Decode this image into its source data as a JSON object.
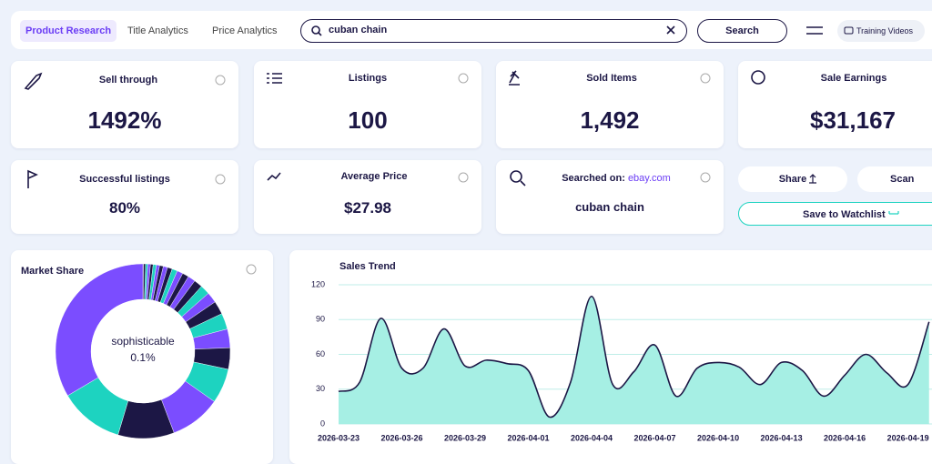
{
  "nav": {
    "tabs": [
      "Product Research",
      "Title Analytics",
      "Price Analytics"
    ],
    "search_query": "cuban chain",
    "search_button": "Search",
    "training_videos": "Training Videos"
  },
  "stats": [
    {
      "label": "Sell through",
      "value": "1492%"
    },
    {
      "label": "Listings",
      "value": "100"
    },
    {
      "label": "Sold Items",
      "value": "1,492"
    },
    {
      "label": "Sale Earnings",
      "value": "$31,167"
    },
    {
      "label": "Successful listings",
      "value": "80%"
    },
    {
      "label": "Average Price",
      "value": "$27.98"
    }
  ],
  "search_info": {
    "label": "Searched on:",
    "site": "ebay.com",
    "query": "cuban chain"
  },
  "actions": {
    "share": "Share",
    "scan": "Scan",
    "watchlist": "Save to Watchlist"
  },
  "chart_data": [
    {
      "type": "pie",
      "title": "Market Share",
      "categories": [
        "sophisticable",
        null,
        null,
        null,
        null,
        null,
        null,
        null,
        null,
        null,
        null,
        null,
        null,
        null,
        null,
        null,
        null,
        null,
        null,
        null,
        null,
        null,
        null,
        null,
        null,
        null
      ],
      "values": [
        0.1,
        0.4,
        0.4,
        0.5,
        0.5,
        0.6,
        0.6,
        0.7,
        0.8,
        0.9,
        1.0,
        1.1,
        1.2,
        1.4,
        1.6,
        1.8,
        2.0,
        2.5,
        3.0,
        3.5,
        4.0,
        6.5,
        9.5,
        10.5,
        12.0,
        33.8
      ],
      "value_labels": [
        "0.1%",
        null,
        null,
        null,
        null,
        null,
        null,
        null,
        null,
        null,
        null,
        null,
        null,
        null,
        null,
        null,
        null,
        null,
        null,
        null,
        null,
        null,
        null,
        null,
        null,
        null
      ],
      "colors": [
        "#7b4dff",
        "#1c1745",
        "#1dd3c0",
        "#7b4dff",
        "#1c1745",
        "#1dd3c0",
        "#7b4dff",
        "#1c1745",
        "#7b4dff",
        "#1c1745",
        "#1dd3c0",
        "#7b4dff",
        "#1c1745",
        "#7b4dff",
        "#1c1745",
        "#1dd3c0",
        "#7b4dff",
        "#1c1745",
        "#1dd3c0",
        "#7b4dff",
        "#1c1745",
        "#1dd3c0",
        "#7b4dff",
        "#1c1745",
        "#1dd3c0",
        "#7b4dff"
      ]
    },
    {
      "type": "line",
      "title": "Sales Trend",
      "categories": [
        "2026-03-23",
        null,
        null,
        "2026-03-26",
        null,
        null,
        "2026-03-29",
        null,
        null,
        "2026-04-01",
        null,
        null,
        "2026-04-04",
        null,
        null,
        "2026-04-07",
        null,
        null,
        "2026-04-10",
        null,
        null,
        "2026-04-13",
        null,
        null,
        "2026-04-16",
        null,
        null,
        "2026-04-19",
        null
      ],
      "values": [
        28,
        36,
        91,
        48,
        48,
        82,
        50,
        55,
        52,
        46,
        6,
        36,
        110,
        34,
        45,
        68,
        24,
        48,
        53,
        49,
        34,
        53,
        46,
        24,
        42,
        60,
        44,
        34,
        88
      ],
      "color": "#1c1745",
      "fill": "#a6efe4",
      "ylim": [
        0,
        120
      ],
      "yticks": [
        0,
        30,
        60,
        90,
        120
      ],
      "grid": true
    }
  ]
}
